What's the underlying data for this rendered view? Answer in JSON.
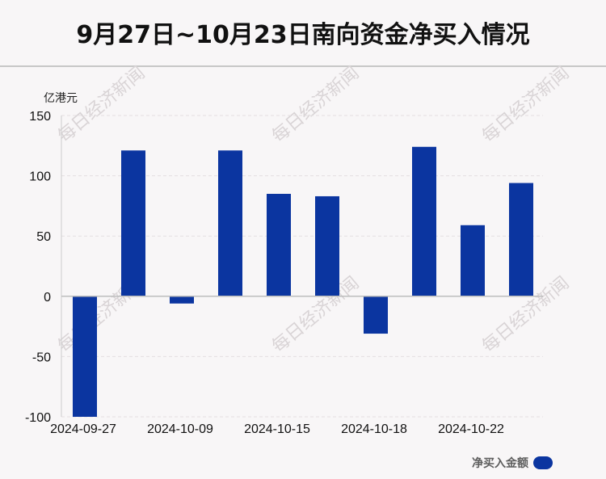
{
  "title": "9月27日~10月23日南向资金净买入情况",
  "unit_label": "亿港元",
  "watermark": "每日经济新闻",
  "colors": {
    "bar": "#0b35a0",
    "background": "#f8f6f7",
    "grid": "#e3dfe1"
  },
  "chart_data": {
    "type": "bar",
    "title": "9月27日~10月23日南向资金净买入情况",
    "ylabel": "亿港元",
    "ylim": [
      -100,
      150
    ],
    "yticks": [
      150,
      100,
      50,
      0,
      -50,
      -100
    ],
    "grid": true,
    "legend_position": "bottom-right",
    "x_tick_labels": [
      "2024-09-27",
      "2024-10-09",
      "2024-10-15",
      "2024-10-18",
      "2024-10-22"
    ],
    "series": [
      {
        "name": "净买入金额",
        "values": [
          -100,
          121,
          -6,
          121,
          85,
          83,
          -31,
          124,
          59,
          94
        ]
      }
    ]
  }
}
